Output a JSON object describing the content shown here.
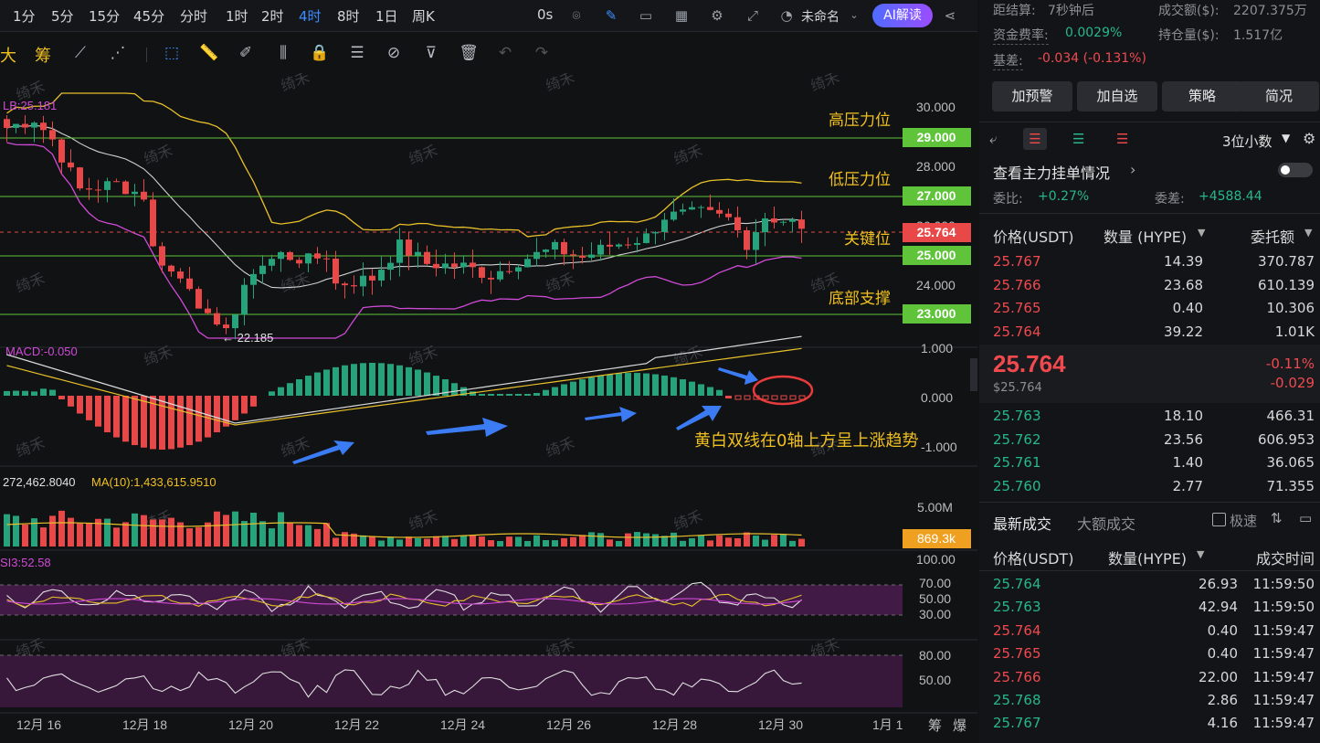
{
  "timeframes": [
    "1分",
    "5分",
    "15分",
    "45分",
    "分时",
    "1时",
    "2时",
    "4时",
    "8时",
    "1日",
    "周K"
  ],
  "active_timeframe": "4时",
  "toolbar": {
    "countdown": "0s",
    "layout_name": "未命名",
    "ai_button": "AI解读"
  },
  "drawbar": {
    "big_label": "大",
    "chip_label": "筹"
  },
  "chart": {
    "boll_label": "LB:25.181",
    "price_axis": [
      "30.000",
      "28.000",
      "26.000",
      "24.000"
    ],
    "levels": [
      {
        "label": "高压力位",
        "value": "29.000",
        "color": "#7ed321"
      },
      {
        "label": "低压力位",
        "value": "27.000",
        "color": "#7ed321"
      },
      {
        "label": "关键位",
        "value": "25.000",
        "color": "#7ed321"
      },
      {
        "label": "底部支撑",
        "value": "23.000",
        "color": "#7ed321"
      }
    ],
    "current_price_tag": "25.764",
    "low_marker": "← 22.185",
    "macd_label": "MACD:-0.050",
    "macd_axis": [
      "1.000",
      "0.000",
      "-1.000"
    ],
    "annotation": "黄白双线在0轴上方呈上涨趋势",
    "vol_label": "272,462.8040",
    "vol_ma_label": "MA(10):1,433,615.9510",
    "vol_axis_top": "5.00M",
    "vol_tag": "869.3k",
    "rsi_label": "SI3:52.58",
    "rsi_axis": [
      "100.00",
      "70.00",
      "50.00",
      "30.00"
    ],
    "osc_axis": [
      "80.00",
      "50.00"
    ],
    "dates": [
      "12月 16",
      "12月 18",
      "12月 20",
      "12月 22",
      "12月 24",
      "12月 26",
      "12月 28",
      "12月 30",
      "1月 1"
    ],
    "bottom_right": [
      "筹",
      "爆"
    ],
    "watermark": "绮禾"
  },
  "panel": {
    "settle_label": "距结算:",
    "settle_value": "7秒钟后",
    "turnover_label": "成交额($):",
    "turnover_value": "2207.375万",
    "funding_label": "资金费率:",
    "funding_value": "0.0029%",
    "oi_label": "持仓量($):",
    "oi_value": "1.517亿",
    "basis_label": "基差:",
    "basis_value": "-0.034 (-0.131%)",
    "buttons": [
      "加预警",
      "加自选",
      "策略",
      "简况"
    ],
    "decimals": "3位小数",
    "main_orders": "查看主力挂单情况",
    "ratio_label": "委比:",
    "ratio_value": "+0.27%",
    "diff_label": "委差:",
    "diff_value": "+4588.44",
    "ob_headers": [
      "价格(USDT)",
      "数量 (HYPE)",
      "委托额"
    ],
    "asks": [
      {
        "price": "25.767",
        "qty": "14.39",
        "amt": "370.787"
      },
      {
        "price": "25.766",
        "qty": "23.68",
        "amt": "610.139"
      },
      {
        "price": "25.765",
        "qty": "0.40",
        "amt": "10.306"
      },
      {
        "price": "25.764",
        "qty": "39.22",
        "amt": "1.01K"
      }
    ],
    "last_price": "25.764",
    "last_price_usd": "$25.764",
    "last_change_pct": "-0.11%",
    "last_change": "-0.029",
    "bids": [
      {
        "price": "25.763",
        "qty": "18.10",
        "amt": "466.31"
      },
      {
        "price": "25.762",
        "qty": "23.56",
        "amt": "606.953"
      },
      {
        "price": "25.761",
        "qty": "1.40",
        "amt": "36.065"
      },
      {
        "price": "25.760",
        "qty": "2.77",
        "amt": "71.355"
      }
    ],
    "trade_tabs": [
      "最新成交",
      "大额成交"
    ],
    "fast_label": "极速",
    "trade_headers": [
      "价格(USDT)",
      "数量(HYPE)",
      "成交时间"
    ],
    "trades": [
      {
        "price": "25.764",
        "qty": "26.93",
        "time": "11:59:50",
        "side": "up"
      },
      {
        "price": "25.763",
        "qty": "42.94",
        "time": "11:59:50",
        "side": "up"
      },
      {
        "price": "25.764",
        "qty": "0.40",
        "time": "11:59:47",
        "side": "down"
      },
      {
        "price": "25.765",
        "qty": "0.40",
        "time": "11:59:47",
        "side": "down"
      },
      {
        "price": "25.766",
        "qty": "22.00",
        "time": "11:59:47",
        "side": "down"
      },
      {
        "price": "25.768",
        "qty": "2.86",
        "time": "11:59:47",
        "side": "up"
      },
      {
        "price": "25.767",
        "qty": "4.16",
        "time": "11:59:47",
        "side": "up"
      }
    ]
  }
}
